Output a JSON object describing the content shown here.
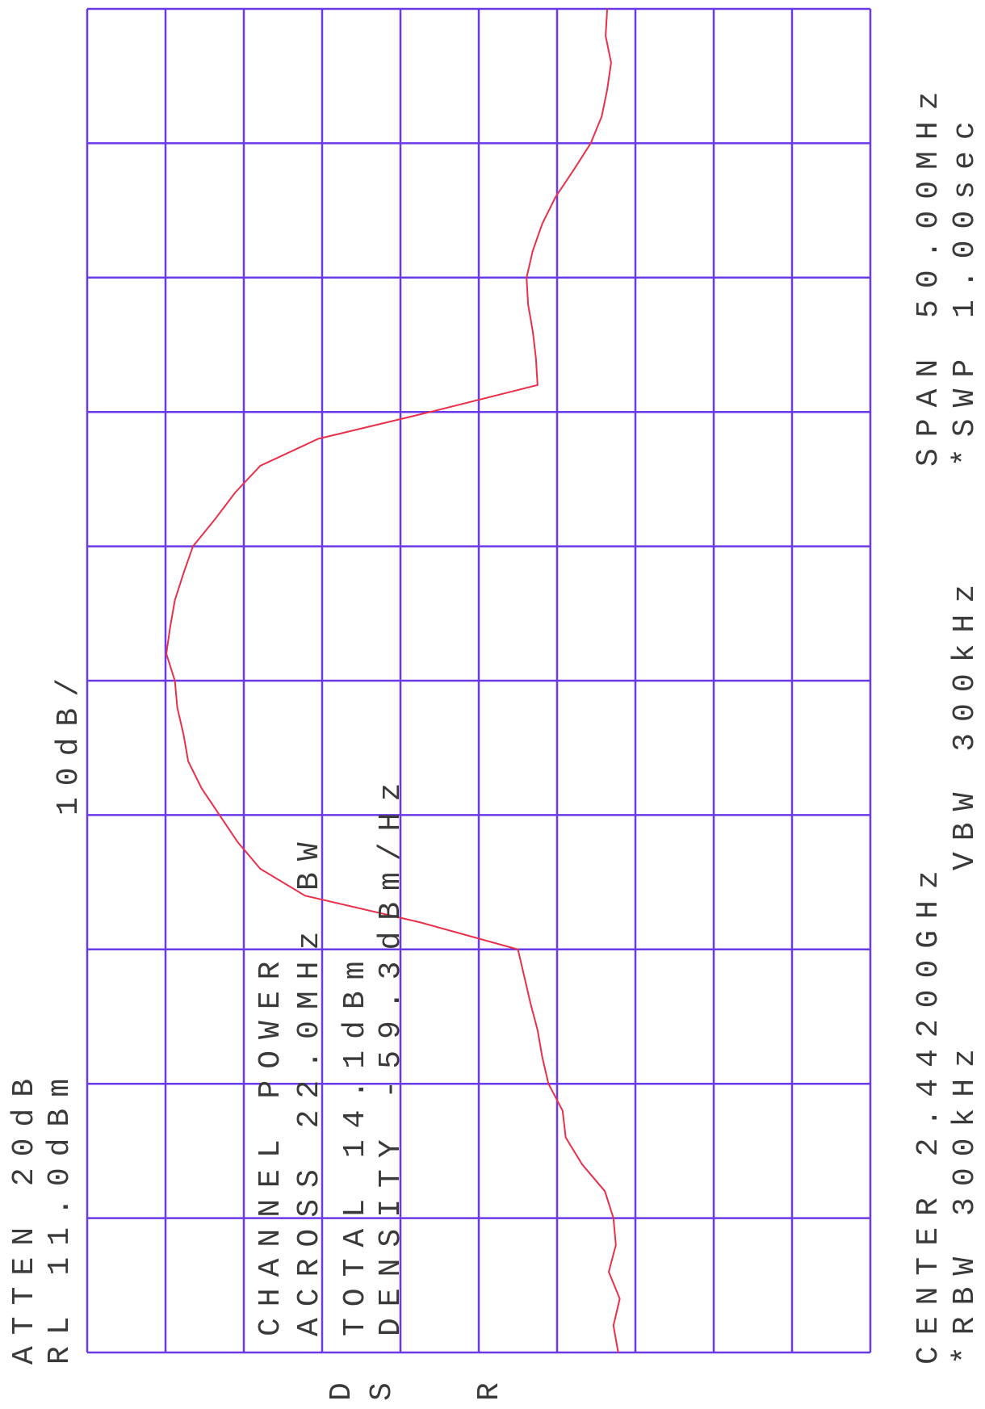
{
  "chart_data": {
    "type": "line",
    "annotations": [
      "ATTEN 20dB",
      "RL 11.0dBm",
      "10dB/",
      "CHANNEL POWER",
      "ACROSS 22.0MHz BW",
      "TOTAL 14.1dBm",
      "DENSITY -59.3dBm/Hz",
      "CENTER 2.44200GHz",
      "*RBW 300kHz",
      "VBW 300kHz",
      "SPAN 50.00MHz",
      "*SWP 1.00sec",
      "D",
      "S",
      "R"
    ],
    "x": [
      2.417,
      2.418,
      2.419,
      2.42,
      2.421,
      2.422,
      2.423,
      2.424,
      2.425,
      2.426,
      2.427,
      2.428,
      2.429,
      2.43,
      2.431,
      2.432,
      2.433,
      2.434,
      2.435,
      2.436,
      2.437,
      2.438,
      2.439,
      2.44,
      2.441,
      2.442,
      2.443,
      2.444,
      2.445,
      2.446,
      2.447,
      2.448,
      2.449,
      2.45,
      2.451,
      2.452,
      2.453,
      2.454,
      2.455,
      2.456,
      2.457,
      2.458,
      2.459,
      2.46,
      2.461,
      2.462,
      2.463,
      2.464,
      2.465,
      2.466,
      2.467
    ],
    "values": [
      -56.8,
      -56.2,
      -57.0,
      -55.6,
      -56.5,
      -56.2,
      -55.1,
      -52.2,
      -50.1,
      -49.7,
      -47.9,
      -47.1,
      -46.5,
      -45.6,
      -44.8,
      -44.0,
      -31.6,
      -16.8,
      -11.1,
      -8.2,
      -5.9,
      -3.6,
      -1.9,
      -1.3,
      -0.5,
      -0.2,
      0.9,
      0.4,
      -0.2,
      -1.3,
      -2.5,
      -5.3,
      -7.9,
      -11.1,
      -18.5,
      -32.8,
      -46.5,
      -46.3,
      -45.9,
      -45.3,
      -45.1,
      -45.9,
      -47.1,
      -48.8,
      -51.1,
      -53.3,
      -54.7,
      -55.4,
      -55.9,
      -55.2,
      -55.4
    ],
    "xlim": [
      2.417,
      2.467
    ],
    "ylim": [
      -89,
      11
    ],
    "color": "#e8304a",
    "grid_color": "#6a3ae8"
  }
}
